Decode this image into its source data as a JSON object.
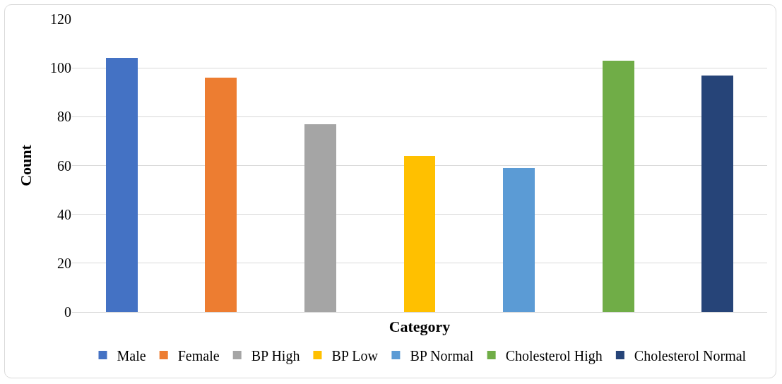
{
  "chart_data": {
    "type": "bar",
    "xlabel": "Category",
    "ylabel": "Count",
    "categories": [
      null,
      null,
      null,
      null,
      null,
      null,
      null
    ],
    "series": [
      {
        "name": "Male",
        "color": "#4472c4",
        "values": [
          104,
          null,
          null,
          null,
          null,
          null,
          null
        ]
      },
      {
        "name": "Female",
        "color": "#ed7d31",
        "values": [
          null,
          96,
          null,
          null,
          null,
          null,
          null
        ]
      },
      {
        "name": "BP High",
        "color": "#a5a5a5",
        "values": [
          null,
          null,
          77,
          null,
          null,
          null,
          null
        ]
      },
      {
        "name": "BP Low",
        "color": "#ffc000",
        "values": [
          null,
          null,
          null,
          64,
          null,
          null,
          null
        ]
      },
      {
        "name": "BP Normal",
        "color": "#5b9bd5",
        "values": [
          null,
          null,
          null,
          null,
          59,
          null,
          null
        ]
      },
      {
        "name": "Cholesterol High",
        "color": "#70ad47",
        "values": [
          null,
          null,
          null,
          null,
          null,
          103,
          null
        ]
      },
      {
        "name": "Cholesterol Normal",
        "color": "#264478",
        "values": [
          null,
          null,
          null,
          null,
          null,
          null,
          97
        ]
      }
    ],
    "ylim": [
      0,
      120
    ],
    "yticks": [
      0,
      20,
      40,
      60,
      80,
      100,
      120
    ],
    "grid": "y",
    "legend": "bottom"
  }
}
